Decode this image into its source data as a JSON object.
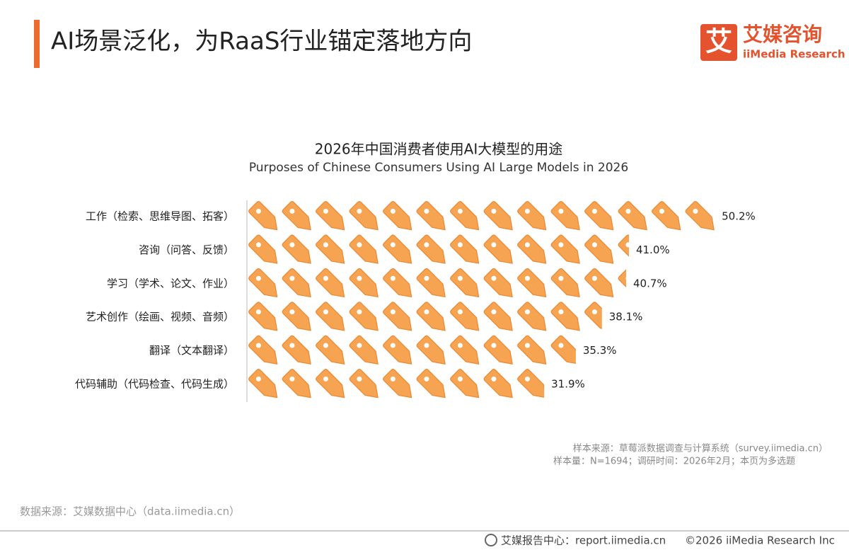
{
  "header": {
    "title": "AI场景泛化，为RaaS行业锚定落地方向",
    "logo_mark": "艾",
    "logo_cn": "艾媒咨询",
    "logo_en": "iiMedia Research"
  },
  "chart_data": {
    "type": "pictograph",
    "title": "2026年中国消费者使用AI大模型的用途",
    "subtitle": "Purposes of Chinese Consumers Using AI Large Models in 2026",
    "categories": [
      "工作（检索、思维导图、拓客）",
      "咨询（问答、反馈）",
      "学习（学术、论文、作业）",
      "艺术创作（绘画、视频、音频）",
      "翻译（文本翻译）",
      "代码辅助（代码检查、代码生成）"
    ],
    "values": [
      50.2,
      41.0,
      40.7,
      38.1,
      35.3,
      31.9
    ],
    "value_labels": [
      "50.2%",
      "41.0%",
      "40.7%",
      "38.1%",
      "35.3%",
      "31.9%"
    ],
    "color": "#f7a452"
  },
  "notes": [
    "样本来源：草莓派数据调查与计算系统（survey.iimedia.cn）",
    "样本量：N=1694；调研时间：2026年2月；本页为多选题"
  ],
  "source": "数据来源：艾媒数据中心（data.iimedia.cn）",
  "footer": {
    "report": "艾媒报告中心：report.iimedia.cn",
    "copyright": "©2026  iiMedia Research  Inc"
  }
}
